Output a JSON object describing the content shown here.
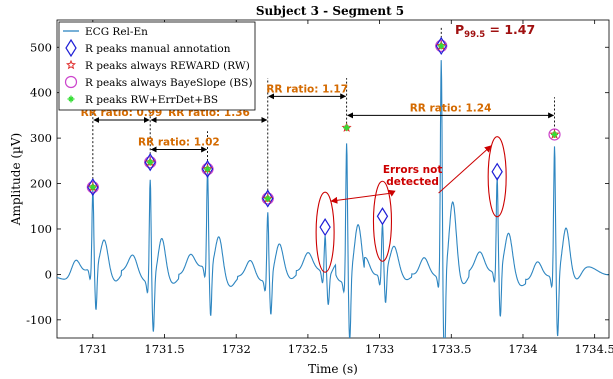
{
  "chart_data": {
    "type": "line",
    "title": "Subject 3 - Segment 5",
    "percentile_label": "P",
    "percentile_sub": "99.5",
    "percentile_value": " = 1.47",
    "xlabel": "Time (s)",
    "ylabel": "Amplitude (µV)",
    "xlim": [
      1730.75,
      1734.6
    ],
    "ylim": [
      -140,
      560
    ],
    "xticks": [
      1731,
      1731.5,
      1732,
      1732.5,
      1733,
      1733.5,
      1734,
      1734.5
    ],
    "yticks": [
      -100,
      0,
      100,
      200,
      300,
      400,
      500
    ],
    "legend_position": "top-left",
    "legend": [
      "ECG Rel-En",
      "R peaks manual annotation",
      "R peaks always REWARD (RW)",
      "R peaks always BayeSlope (BS)",
      "R peaks RW+ErrDet+BS"
    ],
    "colors": {
      "signal": "#2e86c1",
      "manual": "#1f1fd6",
      "reward": "#e0302f",
      "bayeslope": "#cc44cc",
      "combined": "#33dd33",
      "rr_arrows": "#d46a00",
      "errors": "#cc0000",
      "percentile": "#a01010"
    },
    "r_peaks": [
      {
        "t": 1731.0,
        "amp": 192,
        "manual": true,
        "reward": true,
        "bayeslope": true,
        "combined": true
      },
      {
        "t": 1731.4,
        "amp": 247,
        "manual": true,
        "reward": true,
        "bayeslope": true,
        "combined": true
      },
      {
        "t": 1731.8,
        "amp": 232,
        "manual": true,
        "reward": true,
        "bayeslope": true,
        "combined": true
      },
      {
        "t": 1732.22,
        "amp": 167,
        "manual": true,
        "reward": true,
        "bayeslope": true,
        "combined": true
      },
      {
        "t": 1732.62,
        "amp": 104,
        "manual": true,
        "reward": false,
        "bayeslope": false,
        "combined": false
      },
      {
        "t": 1732.77,
        "amp": 323,
        "manual": false,
        "reward": true,
        "bayeslope": false,
        "combined": true
      },
      {
        "t": 1733.02,
        "amp": 128,
        "manual": true,
        "reward": false,
        "bayeslope": false,
        "combined": false
      },
      {
        "t": 1733.43,
        "amp": 503,
        "manual": true,
        "reward": true,
        "bayeslope": true,
        "combined": true
      },
      {
        "t": 1733.82,
        "amp": 226,
        "manual": true,
        "reward": false,
        "bayeslope": false,
        "combined": false
      },
      {
        "t": 1734.22,
        "amp": 308,
        "manual": false,
        "reward": true,
        "bayeslope": true,
        "combined": true
      }
    ],
    "rr_ratios": [
      {
        "label": "RR ratio: 0.99",
        "t_start": 1731.0,
        "t_end": 1731.4,
        "amp": 340
      },
      {
        "label": "RR ratio: 1.02",
        "t_start": 1731.4,
        "t_end": 1731.8,
        "amp": 275
      },
      {
        "label": "RR ratio: 1.36",
        "t_start": 1731.4,
        "t_end": 1732.22,
        "amp": 340
      },
      {
        "label": "RR ratio: 1.17",
        "t_start": 1732.22,
        "t_end": 1732.77,
        "amp": 392
      },
      {
        "label": "RR ratio: 1.24",
        "t_start": 1732.77,
        "t_end": 1734.22,
        "amp": 350
      }
    ],
    "errors_label": [
      "Errors not",
      "detected"
    ],
    "error_peaks_t": [
      1732.62,
      1733.02,
      1733.82
    ]
  }
}
